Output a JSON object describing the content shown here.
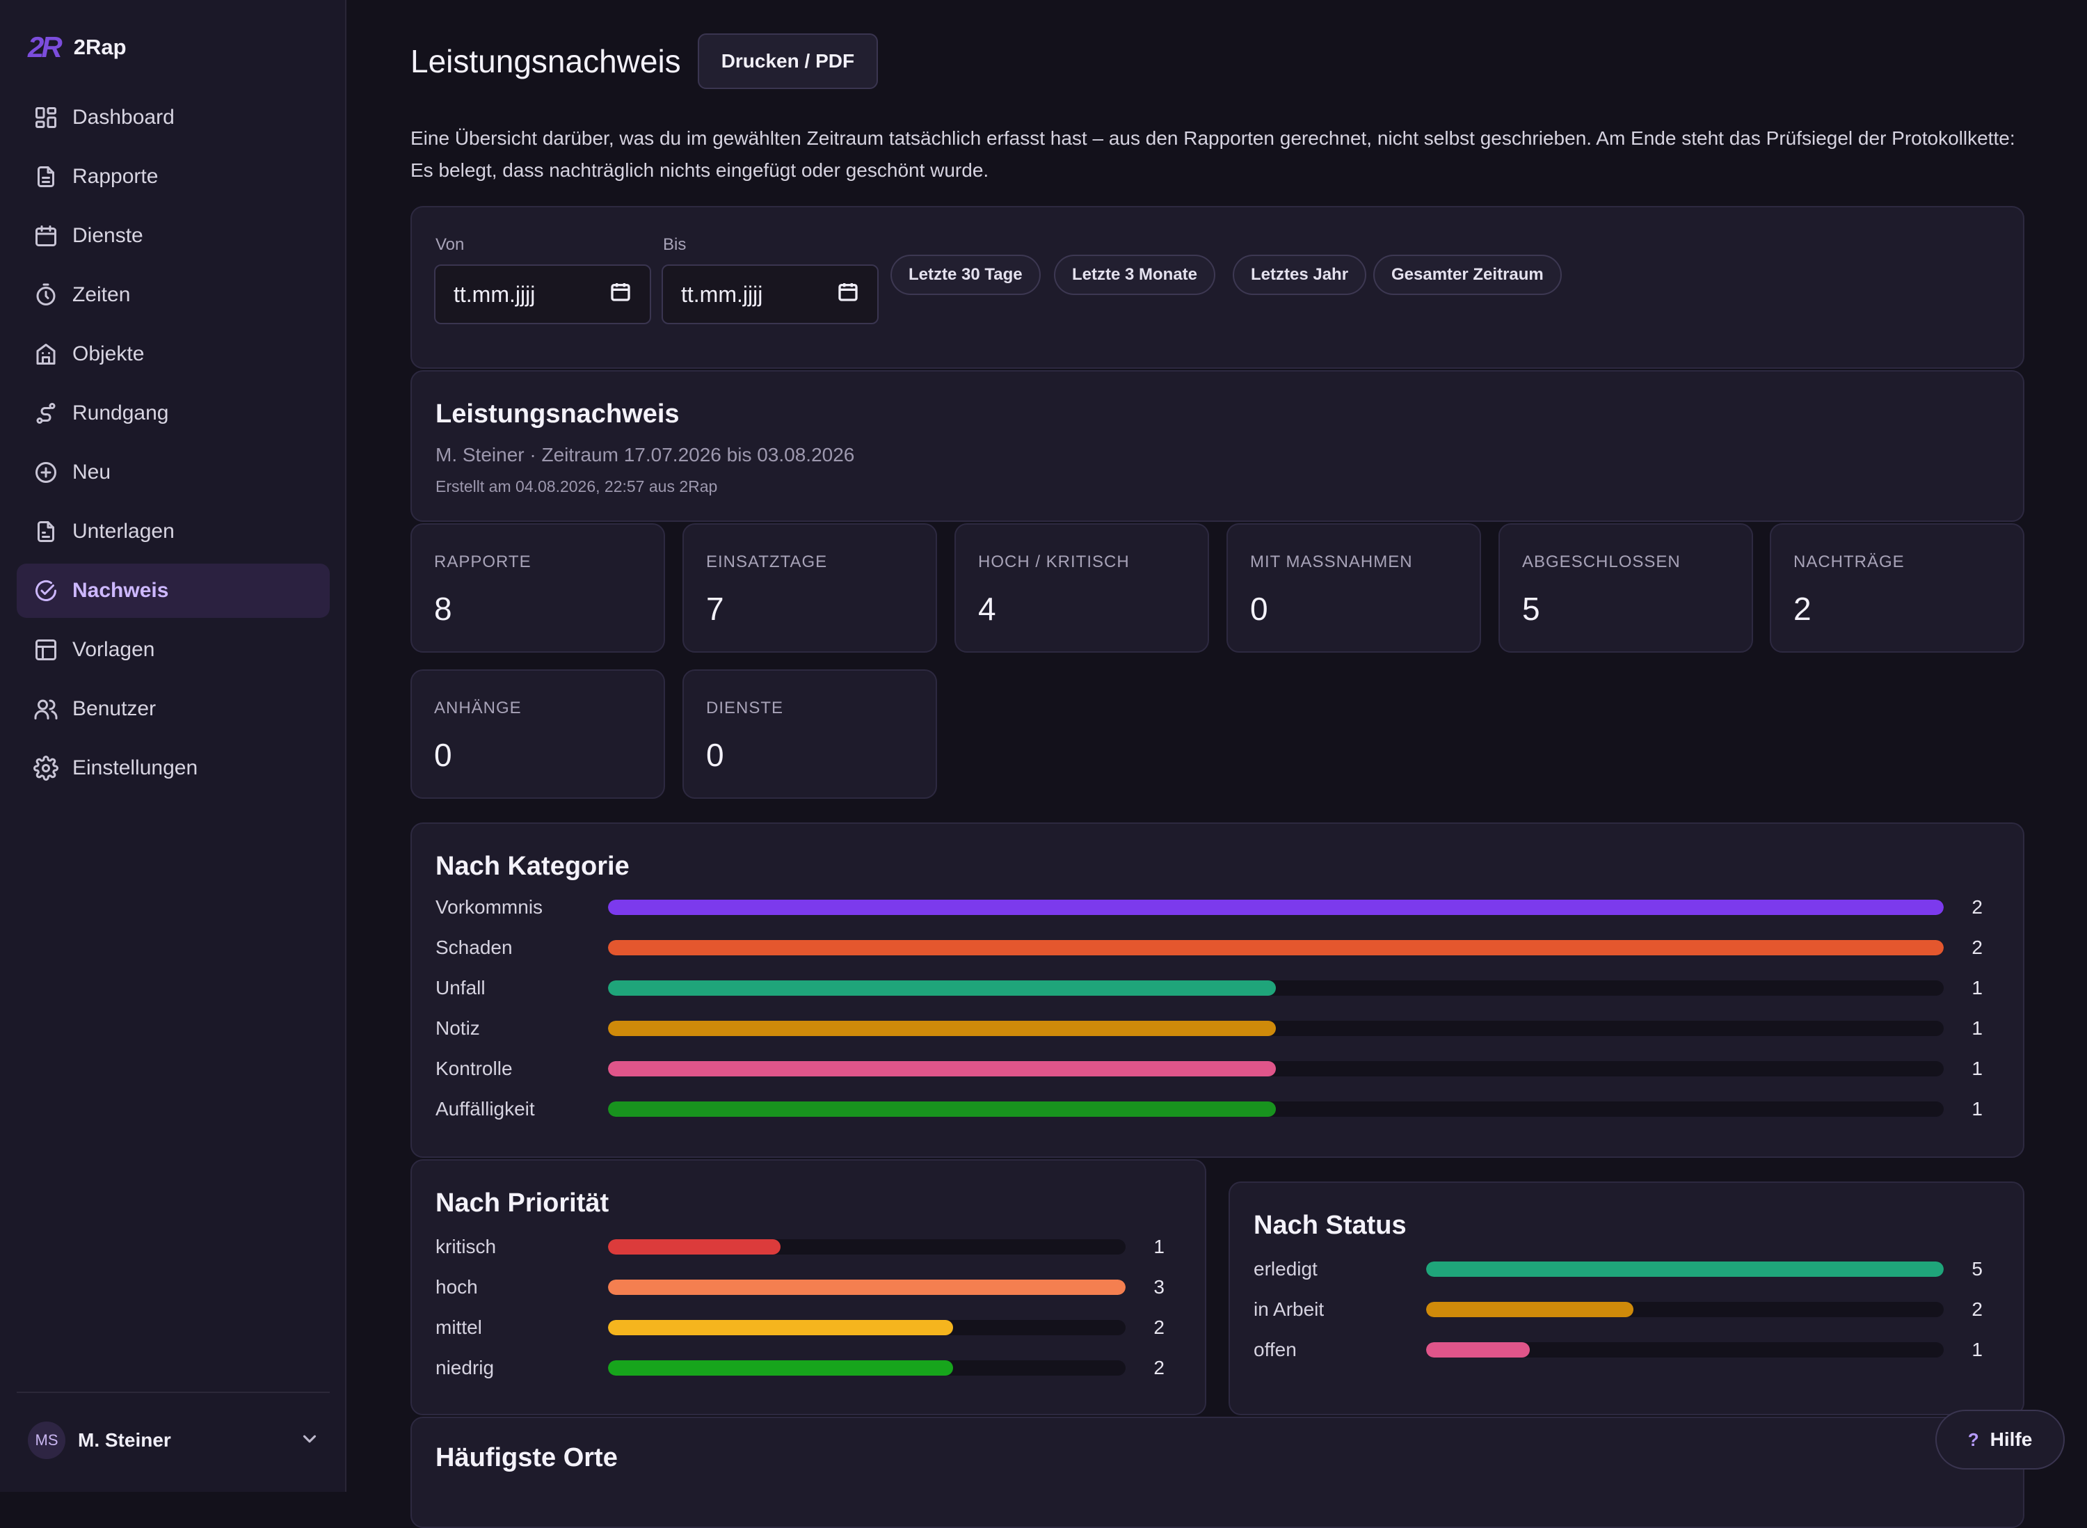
{
  "app": {
    "logo": "2R",
    "name": "2Rap"
  },
  "sidebar": {
    "items": [
      {
        "label": "Dashboard",
        "icon": "dashboard-icon"
      },
      {
        "label": "Rapporte",
        "icon": "document-icon"
      },
      {
        "label": "Dienste",
        "icon": "calendar-icon"
      },
      {
        "label": "Zeiten",
        "icon": "stopwatch-icon"
      },
      {
        "label": "Objekte",
        "icon": "building-icon"
      },
      {
        "label": "Rundgang",
        "icon": "route-icon"
      },
      {
        "label": "Neu",
        "icon": "plus-circle-icon"
      },
      {
        "label": "Unterlagen",
        "icon": "file-icon"
      },
      {
        "label": "Nachweis",
        "icon": "check-circle-icon",
        "active": true
      },
      {
        "label": "Vorlagen",
        "icon": "layout-icon"
      },
      {
        "label": "Benutzer",
        "icon": "users-icon"
      },
      {
        "label": "Einstellungen",
        "icon": "gear-icon"
      }
    ],
    "user": {
      "initials": "MS",
      "name": "M. Steiner"
    }
  },
  "header": {
    "title": "Leistungsnachweis",
    "print_label": "Drucken / PDF",
    "intro": "Eine Übersicht darüber, was du im gewählten Zeitraum tatsächlich erfasst hast – aus den Rapporten gerechnet, nicht selbst geschrieben. Am Ende steht das Prüfsiegel der Protokollkette: Es belegt, dass nachträglich nichts eingefügt oder geschönt wurde."
  },
  "filter": {
    "from_label": "Von",
    "from_value": "tt.mm.jjjj",
    "to_label": "Bis",
    "to_value": "tt.mm.jjjj",
    "presets": [
      "Letzte 30 Tage",
      "Letzte 3 Monate",
      "Letztes Jahr",
      "Gesamter Zeitraum"
    ]
  },
  "summary": {
    "title": "Leistungsnachweis",
    "meta": "M. Steiner · Zeitraum 17.07.2026 bis 03.08.2026",
    "created": "Erstellt am 04.08.2026, 22:57 aus 2Rap"
  },
  "stats": [
    {
      "label": "RAPPORTE",
      "value": "8"
    },
    {
      "label": "EINSATZTAGE",
      "value": "7"
    },
    {
      "label": "HOCH / KRITISCH",
      "value": "4"
    },
    {
      "label": "MIT MASSNAHMEN",
      "value": "0"
    },
    {
      "label": "ABGESCHLOSSEN",
      "value": "5"
    },
    {
      "label": "NACHTRÄGE",
      "value": "2"
    },
    {
      "label": "ANHÄNGE",
      "value": "0"
    },
    {
      "label": "DIENSTE",
      "value": "0"
    }
  ],
  "chart_data": [
    {
      "type": "bar",
      "title": "Nach Kategorie",
      "categories": [
        "Vorkommnis",
        "Schaden",
        "Unfall",
        "Notiz",
        "Kontrolle",
        "Auffälligkeit"
      ],
      "values": [
        2,
        2,
        1,
        1,
        1,
        1
      ],
      "max": 2,
      "colors": [
        "#7c3aed",
        "#e4572e",
        "#1fa57a",
        "#cf8a0a",
        "#e0558a",
        "#18931e"
      ]
    },
    {
      "type": "bar",
      "title": "Nach Priorität",
      "categories": [
        "kritisch",
        "hoch",
        "mittel",
        "niedrig"
      ],
      "values": [
        1,
        3,
        2,
        2
      ],
      "max": 3,
      "colors": [
        "#dc3b3b",
        "#f47f50",
        "#f5b51e",
        "#17a51c"
      ]
    },
    {
      "type": "bar",
      "title": "Nach Status",
      "categories": [
        "erledigt",
        "in Arbeit",
        "offen"
      ],
      "values": [
        5,
        2,
        1
      ],
      "max": 5,
      "colors": [
        "#1fa57a",
        "#cf8a0a",
        "#e0558a"
      ]
    }
  ],
  "places": {
    "title": "Häufigste Orte"
  },
  "help": {
    "icon": "?",
    "label": "Hilfe"
  }
}
